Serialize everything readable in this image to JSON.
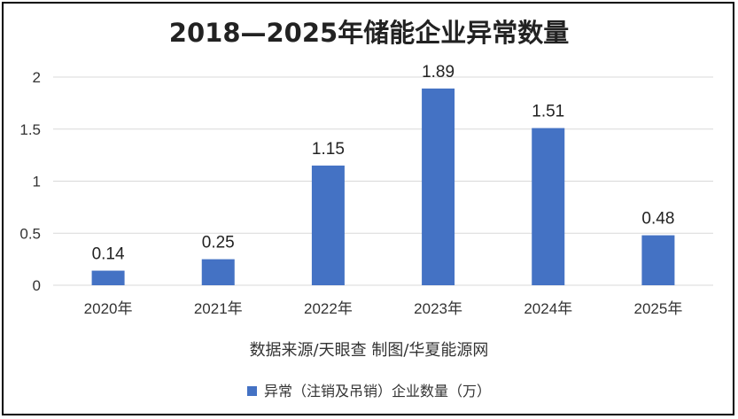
{
  "chart_data": {
    "type": "bar",
    "title": "2018—2025年储能企业异常数量",
    "categories": [
      "2020年",
      "2021年",
      "2022年",
      "2023年",
      "2024年",
      "2025年"
    ],
    "series": [
      {
        "name": "异常（注销及吊销）企业数量（万）",
        "values": [
          0.14,
          0.25,
          1.15,
          1.89,
          1.51,
          0.48
        ],
        "color": "#4472C4"
      }
    ],
    "data_labels": [
      "0.14",
      "0.25",
      "1.15",
      "1.89",
      "1.51",
      "0.48"
    ],
    "yticks": [
      "0",
      "0.5",
      "1",
      "1.5",
      "2"
    ],
    "ylim": [
      0,
      2
    ],
    "grid": true,
    "legend_position": "bottom"
  },
  "source_note": "数据来源/天眼查  制图/华夏能源网"
}
